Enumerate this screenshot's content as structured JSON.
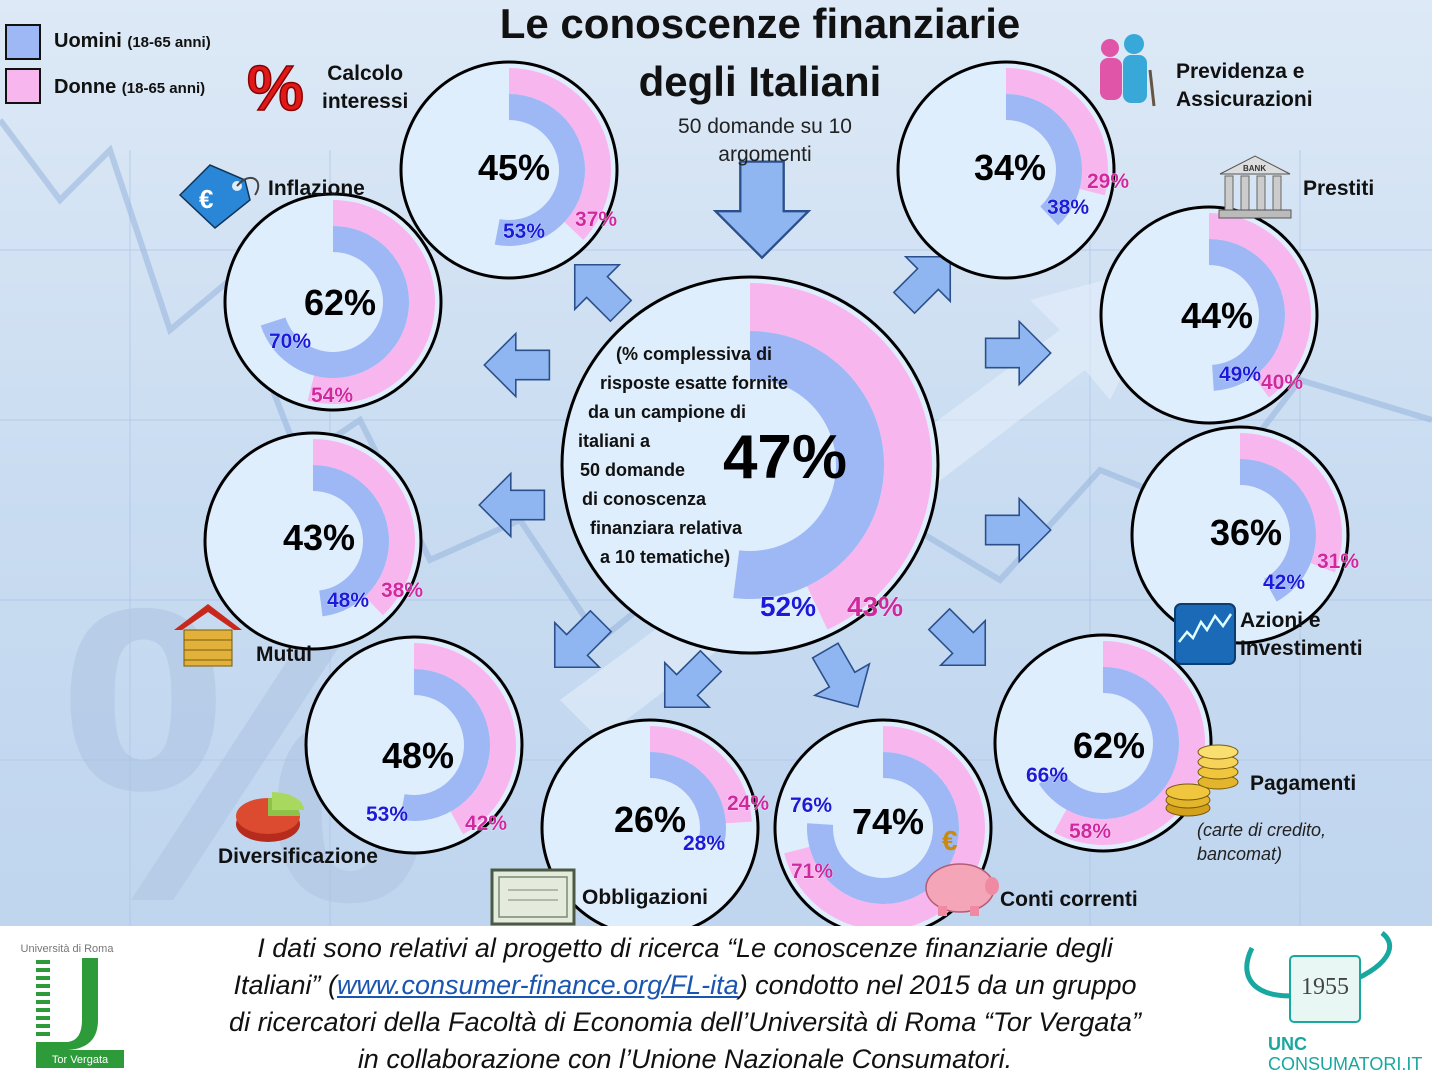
{
  "title_line1": "Le conoscenze finanziarie",
  "title_line2": "degli Italiani",
  "subtitle": "50 domande su 10 argomenti",
  "legend": {
    "men_label": "Uomini",
    "men_age": "(18-65 anni)",
    "women_label": "Donne",
    "women_age": "(18-65 anni)"
  },
  "center_description_lines": [
    "(% complessiva di",
    "risposte esatte fornite",
    "da un campione di",
    "italiani a",
    "50 domande",
    "di conoscenza",
    "finanziara relativa",
    "a 10 tematiche)"
  ],
  "colors": {
    "men": "#9db8f5",
    "women": "#f8b6ee",
    "men_text": "#1a1ad8",
    "women_text": "#d0289e",
    "arrow": "#8fb6f0"
  },
  "icons": [
    "percent-icon",
    "euro-tag-icon",
    "elderly-couple-icon",
    "bank-icon",
    "stock-chart-icon",
    "coins-icon",
    "piggy-bank-icon",
    "certificate-icon",
    "pie-chart-icon",
    "house-coins-icon",
    "down-arrow-icon"
  ],
  "chart_data": {
    "type": "donut",
    "unit": "%",
    "overall": {
      "label": "47%",
      "value": 47,
      "men": 52,
      "women": 43,
      "men_label": "52%",
      "women_label": "43%"
    },
    "topics": [
      {
        "name": "Calcolo interessi",
        "lines": [
          "Calcolo",
          "interessi"
        ],
        "total": 45,
        "men": 53,
        "women": 37
      },
      {
        "name": "Previdenza e Assicurazioni",
        "lines": [
          "Previdenza e",
          "Assicurazioni"
        ],
        "total": 34,
        "men": 38,
        "women": 29
      },
      {
        "name": "Inflazione",
        "lines": [
          "Inflazione"
        ],
        "total": 62,
        "men": 70,
        "women": 54
      },
      {
        "name": "Prestiti",
        "lines": [
          "Prestiti"
        ],
        "total": 44,
        "men": 49,
        "women": 40
      },
      {
        "name": "Mutui",
        "lines": [
          "Mutui"
        ],
        "total": 43,
        "men": 48,
        "women": 38
      },
      {
        "name": "Azioni e Investimenti",
        "lines": [
          "Azioni e",
          "Investimenti"
        ],
        "total": 36,
        "men": 42,
        "women": 31
      },
      {
        "name": "Diversificazione",
        "lines": [
          "Diversificazione"
        ],
        "total": 48,
        "men": 53,
        "women": 42
      },
      {
        "name": "Obbligazioni",
        "lines": [
          "Obbligazioni"
        ],
        "total": 26,
        "men": 28,
        "women": 24
      },
      {
        "name": "Conti correnti",
        "lines": [
          "Conti correnti"
        ],
        "total": 74,
        "men": 76,
        "women": 71
      },
      {
        "name": "Pagamenti",
        "lines": [
          "Pagamenti"
        ],
        "note_lines": [
          "(carte di credito,",
          "bancomat)"
        ],
        "total": 62,
        "men": 66,
        "women": 58
      }
    ]
  },
  "footer": {
    "line1": "I dati sono relativi al progetto di ricerca “Le conoscenze finanziarie degli",
    "line2_before": "Italiani” (",
    "link": "www.consumer-finance.org/FL-ita",
    "line2_after": ") condotto nel 2015 da un gruppo",
    "line3": "di ricercatori della Facoltà di Economia dell’Università di Roma “Tor Vergata”",
    "line4": "in collaborazione con l’Unione Nazionale Consumatori."
  },
  "logos": {
    "tor_vergata_top": "Università di Roma",
    "tor_vergata_bottom": "Tor Vergata",
    "unc_year": "1955",
    "unc_name": "UNC",
    "unc_site": "CONSUMATORI.IT"
  }
}
